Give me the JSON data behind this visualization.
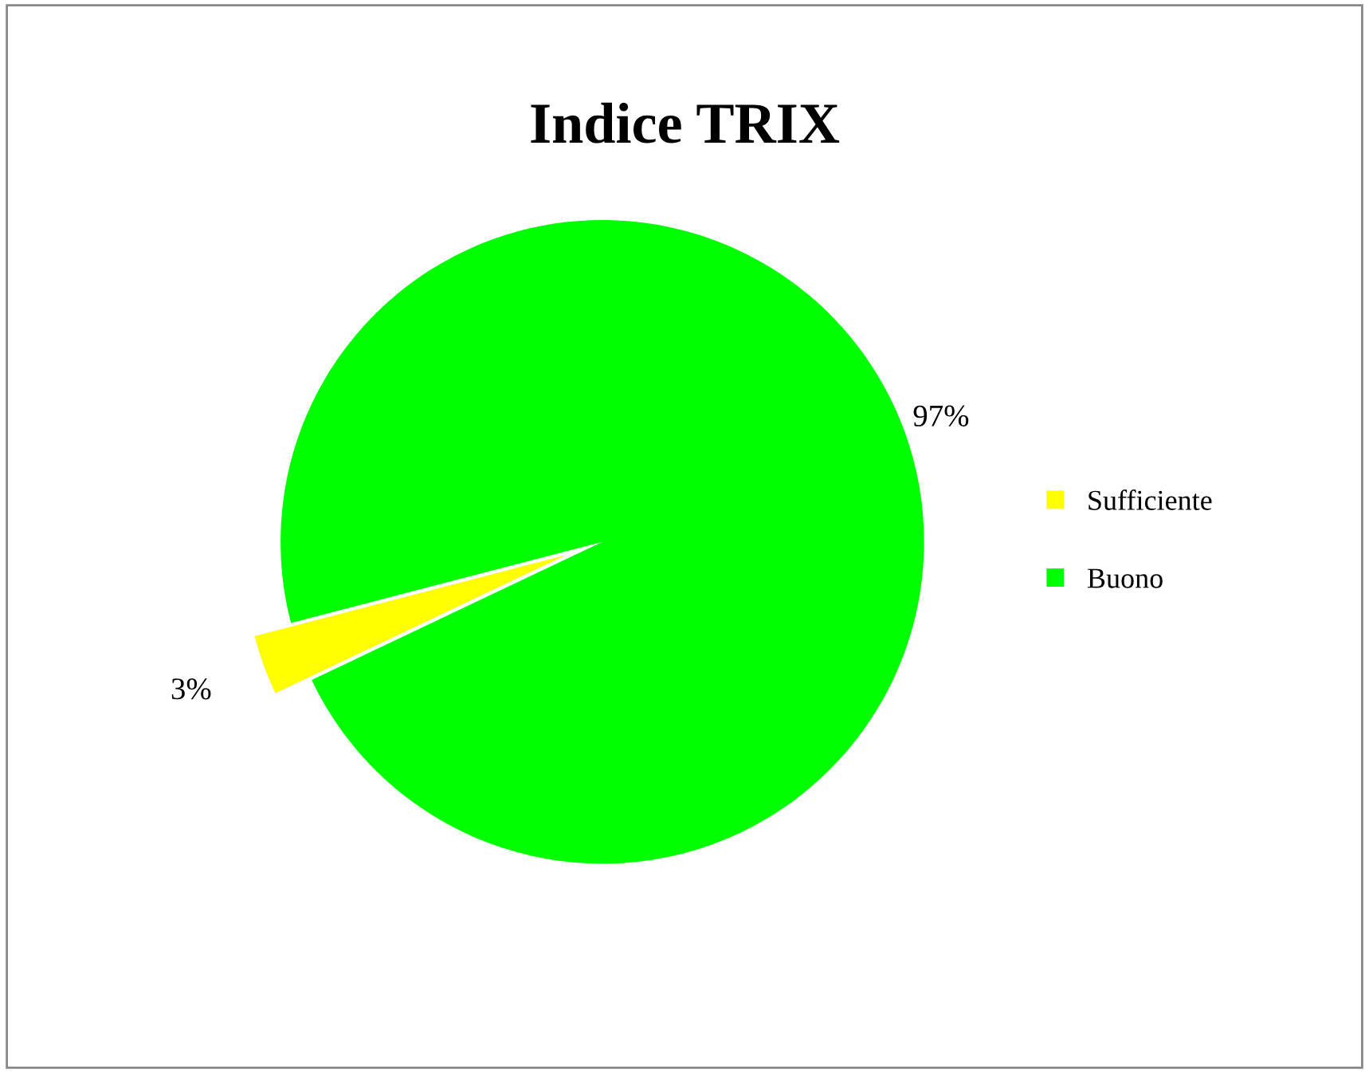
{
  "chart_data": {
    "type": "pie",
    "title": "Indice TRIX",
    "categories": [
      "Sufficiente",
      "Buono"
    ],
    "values": [
      3,
      97
    ],
    "colors": [
      "#ffff00",
      "#00ff00"
    ],
    "value_labels": [
      "3%",
      "97%"
    ],
    "legend": "right"
  }
}
